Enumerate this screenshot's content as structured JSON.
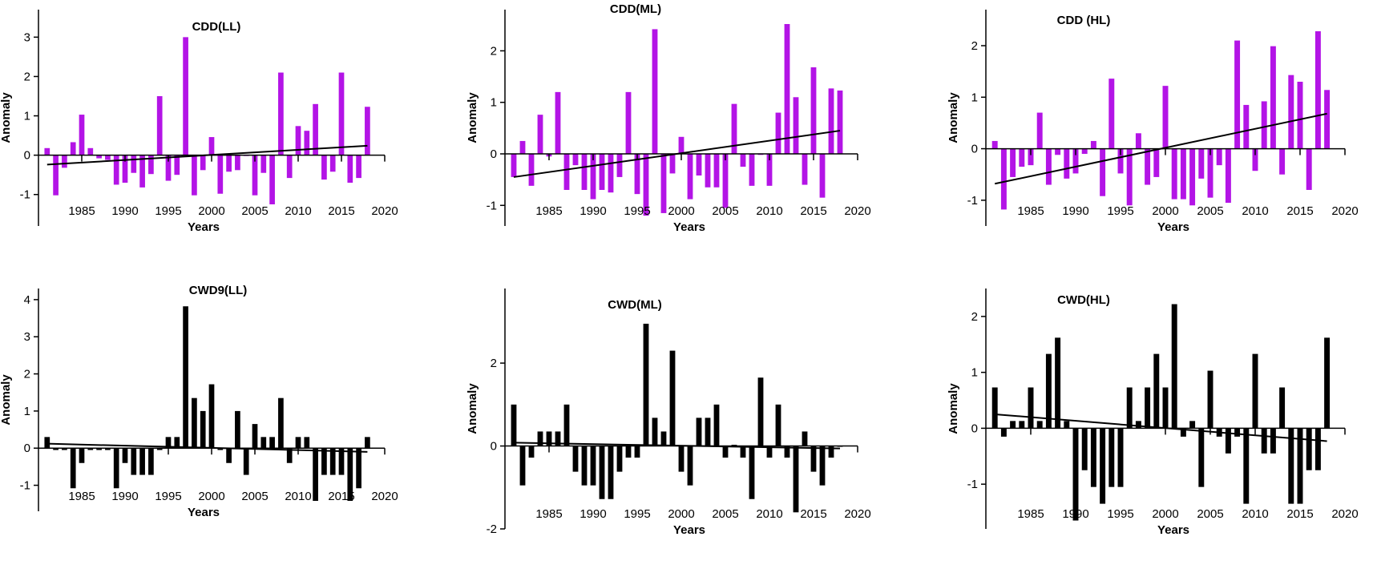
{
  "chart_data": [
    {
      "type": "bar",
      "title": "CDD(LL)",
      "xlabel": "Years",
      "ylabel": "Anomaly",
      "color": "#b314e6",
      "x": [
        1981,
        1982,
        1983,
        1984,
        1985,
        1986,
        1987,
        1988,
        1989,
        1990,
        1991,
        1992,
        1993,
        1994,
        1995,
        1996,
        1997,
        1998,
        1999,
        2000,
        2001,
        2002,
        2003,
        2004,
        2005,
        2006,
        2007,
        2008,
        2009,
        2010,
        2011,
        2012,
        2013,
        2014,
        2015,
        2016,
        2017,
        2018
      ],
      "values": [
        0.18,
        -1.02,
        -0.32,
        0.33,
        1.03,
        0.18,
        -0.08,
        -0.12,
        -0.75,
        -0.7,
        -0.45,
        -0.82,
        -0.48,
        1.5,
        -0.65,
        -0.5,
        3.0,
        -1.02,
        -0.38,
        0.46,
        -0.98,
        -0.42,
        -0.38,
        -0.02,
        -1.02,
        -0.45,
        -1.25,
        2.1,
        -0.58,
        0.74,
        0.62,
        1.3,
        -0.62,
        -0.42,
        2.1,
        -0.7,
        -0.58,
        1.23
      ],
      "trend": [
        -0.24,
        0.24
      ],
      "xticks": [
        "1985",
        "1990",
        "1995",
        "2000",
        "2005",
        "2010",
        "2015",
        "2020"
      ],
      "yticks": [
        "-1",
        "0",
        "1",
        "2",
        "3"
      ],
      "xlim": [
        1980,
        2020
      ],
      "ylim": [
        -1.8,
        3.7
      ]
    },
    {
      "type": "bar",
      "title": "CDD(ML)",
      "xlabel": "Years",
      "ylabel": "Anomaly",
      "color": "#b314e6",
      "x": [
        1981,
        1982,
        1983,
        1984,
        1985,
        1986,
        1987,
        1988,
        1989,
        1990,
        1991,
        1992,
        1993,
        1994,
        1995,
        1996,
        1997,
        1998,
        1999,
        2000,
        2001,
        2002,
        2003,
        2004,
        2005,
        2006,
        2007,
        2008,
        2009,
        2010,
        2011,
        2012,
        2013,
        2014,
        2015,
        2016,
        2017,
        2018
      ],
      "values": [
        -0.45,
        0.25,
        -0.62,
        0.76,
        -0.05,
        1.2,
        -0.7,
        -0.22,
        -0.7,
        -0.88,
        -0.7,
        -0.75,
        -0.45,
        1.2,
        -0.78,
        -1.2,
        2.42,
        -1.15,
        -0.38,
        0.33,
        -0.88,
        -0.42,
        -0.65,
        -0.65,
        -1.05,
        0.97,
        -0.25,
        -0.62,
        -0.02,
        -0.62,
        0.8,
        2.52,
        1.1,
        -0.6,
        1.68,
        -0.85,
        1.27,
        1.23
      ],
      "trend": [
        -0.45,
        0.45
      ],
      "xticks": [
        "1985",
        "1990",
        "1995",
        "2000",
        "2005",
        "2010",
        "2015",
        "2020"
      ],
      "yticks": [
        "-1",
        "0",
        "1",
        "2"
      ],
      "xlim": [
        1980,
        2020
      ],
      "ylim": [
        -1.4,
        2.8
      ]
    },
    {
      "type": "bar",
      "title": "CDD (HL)",
      "xlabel": "Years",
      "ylabel": "Anomaly",
      "color": "#b314e6",
      "x": [
        1981,
        1982,
        1983,
        1984,
        1985,
        1986,
        1987,
        1988,
        1989,
        1990,
        1991,
        1992,
        1993,
        1994,
        1995,
        1996,
        1997,
        1998,
        1999,
        2000,
        2001,
        2002,
        2003,
        2004,
        2005,
        2006,
        2007,
        2008,
        2009,
        2010,
        2011,
        2012,
        2013,
        2014,
        2015,
        2016,
        2017,
        2018
      ],
      "values": [
        0.15,
        -1.18,
        -0.55,
        -0.35,
        -0.32,
        0.7,
        -0.7,
        -0.12,
        -0.58,
        -0.48,
        -0.1,
        0.15,
        -0.92,
        1.36,
        -0.48,
        -1.1,
        0.3,
        -0.7,
        -0.55,
        1.22,
        -0.98,
        -0.98,
        -1.1,
        -0.58,
        -0.95,
        -0.32,
        -1.05,
        2.1,
        0.85,
        -0.43,
        0.92,
        1.99,
        -0.5,
        1.43,
        1.3,
        -0.8,
        2.28,
        1.14
      ],
      "trend": [
        -0.68,
        0.68
      ],
      "xticks": [
        "1985",
        "1990",
        "1995",
        "2000",
        "2005",
        "2010",
        "2015",
        "2020"
      ],
      "yticks": [
        "-1",
        "0",
        "1",
        "2"
      ],
      "xlim": [
        1980,
        2020
      ],
      "ylim": [
        -1.5,
        2.7
      ]
    },
    {
      "type": "bar",
      "title": "CWD9(LL)",
      "xlabel": "Years",
      "ylabel": "Anomaly",
      "color": "#000000",
      "x": [
        1981,
        1982,
        1983,
        1984,
        1985,
        1986,
        1987,
        1988,
        1989,
        1990,
        1991,
        1992,
        1993,
        1994,
        1995,
        1996,
        1997,
        1998,
        1999,
        2000,
        2001,
        2002,
        2003,
        2004,
        2005,
        2006,
        2007,
        2008,
        2009,
        2010,
        2011,
        2012,
        2013,
        2014,
        2015,
        2016,
        2017,
        2018
      ],
      "values": [
        0.3,
        -0.05,
        -0.05,
        -1.08,
        -0.4,
        -0.05,
        -0.05,
        -0.05,
        -1.08,
        -0.4,
        -0.72,
        -0.72,
        -0.72,
        -0.05,
        0.3,
        0.3,
        3.82,
        1.35,
        1.0,
        1.72,
        -0.05,
        -0.4,
        1.0,
        -0.72,
        0.65,
        0.3,
        0.3,
        1.35,
        -0.4,
        0.3,
        0.3,
        -1.42,
        -0.72,
        -0.72,
        -0.72,
        -1.42,
        -1.08,
        0.3
      ],
      "trend": [
        0.12,
        -0.1
      ],
      "xticks": [
        "1985",
        "1990",
        "1995",
        "2000",
        "2005",
        "2010",
        "2015",
        "2020"
      ],
      "yticks": [
        "-1",
        "0",
        "1",
        "2",
        "3",
        "4"
      ],
      "xlim": [
        1980,
        2020
      ],
      "ylim": [
        -1.7,
        4.3
      ]
    },
    {
      "type": "bar",
      "title": "CWD(ML)",
      "xlabel": "Years",
      "ylabel": "Anomaly",
      "color": "#000000",
      "x": [
        1981,
        1982,
        1983,
        1984,
        1985,
        1986,
        1987,
        1988,
        1989,
        1990,
        1991,
        1992,
        1993,
        1994,
        1995,
        1996,
        1997,
        1998,
        1999,
        2000,
        2001,
        2002,
        2003,
        2004,
        2005,
        2006,
        2007,
        2008,
        2009,
        2010,
        2011,
        2012,
        2013,
        2014,
        2015,
        2016,
        2017,
        2018
      ],
      "values": [
        1.0,
        -0.95,
        -0.28,
        0.35,
        0.35,
        0.35,
        1.0,
        -0.62,
        -0.95,
        -0.95,
        -1.28,
        -1.28,
        -0.62,
        -0.28,
        -0.28,
        2.95,
        0.68,
        0.35,
        2.3,
        -0.62,
        -0.95,
        0.68,
        0.68,
        1.0,
        -0.28,
        0.03,
        -0.28,
        -1.28,
        1.65,
        -0.28,
        1.0,
        -0.28,
        -1.6,
        0.35,
        -0.62,
        -0.95,
        -0.28,
        0.0
      ],
      "trend": [
        0.08,
        -0.06
      ],
      "xticks": [
        "1985",
        "1990",
        "1995",
        "2000",
        "2005",
        "2010",
        "2015",
        "2020"
      ],
      "yticks": [
        "-2",
        "0",
        "2"
      ],
      "xlim": [
        1980,
        2020
      ],
      "ylim": [
        -2.0,
        3.8
      ]
    },
    {
      "type": "bar",
      "title": "CWD(HL)",
      "xlabel": "Years",
      "ylabel": "Anomaly",
      "color": "#000000",
      "x": [
        1981,
        1982,
        1983,
        1984,
        1985,
        1986,
        1987,
        1988,
        1989,
        1990,
        1991,
        1992,
        1993,
        1994,
        1995,
        1996,
        1997,
        1998,
        1999,
        2000,
        2001,
        2002,
        2003,
        2004,
        2005,
        2006,
        2007,
        2008,
        2009,
        2010,
        2011,
        2012,
        2013,
        2014,
        2015,
        2016,
        2017,
        2018
      ],
      "values": [
        0.73,
        -0.15,
        0.13,
        0.13,
        0.73,
        0.13,
        1.33,
        1.62,
        0.13,
        -1.65,
        -0.75,
        -1.05,
        -1.35,
        -1.05,
        -1.05,
        0.73,
        0.13,
        0.73,
        1.33,
        0.73,
        2.22,
        -0.15,
        0.13,
        -1.05,
        1.03,
        -0.15,
        -0.45,
        -0.15,
        -1.35,
        1.33,
        -0.45,
        -0.45,
        0.73,
        -1.35,
        -1.35,
        -0.75,
        -0.75,
        1.62
      ],
      "trend": [
        0.25,
        -0.23
      ],
      "xticks": [
        "1985",
        "1990",
        "1995",
        "2000",
        "2005",
        "2010",
        "2015",
        "2020"
      ],
      "yticks": [
        "-1",
        "0",
        "1",
        "2"
      ],
      "xlim": [
        1980,
        2020
      ],
      "ylim": [
        -1.8,
        2.5
      ]
    }
  ]
}
